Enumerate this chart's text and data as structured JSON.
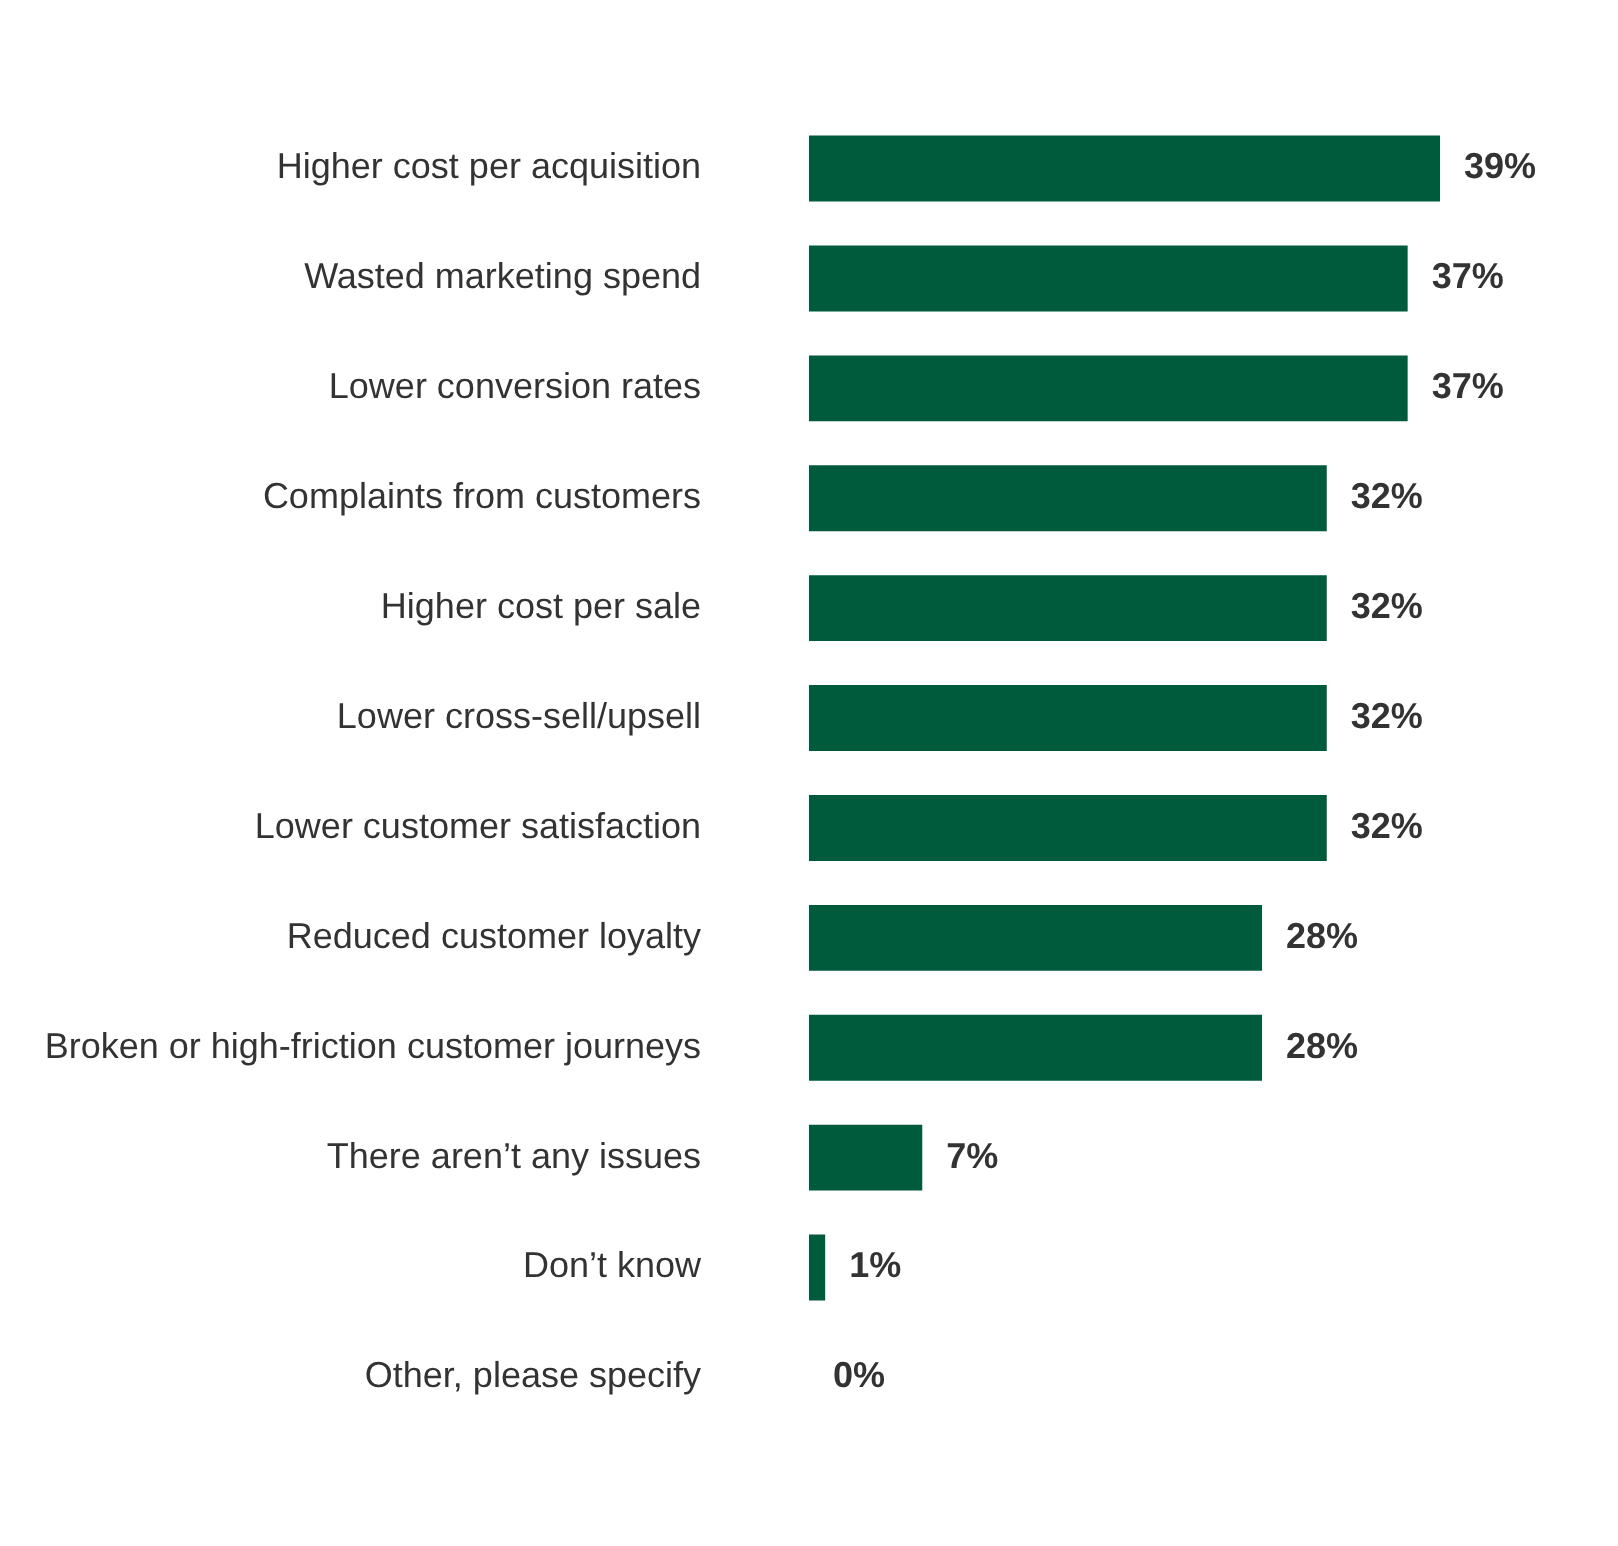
{
  "chart_data": {
    "type": "bar",
    "orientation": "horizontal",
    "categories": [
      "Higher cost per acquisition",
      "Wasted marketing spend",
      "Lower conversion rates",
      "Complaints from customers",
      "Higher cost per sale",
      "Lower cross-sell/upsell",
      "Lower customer satisfaction",
      "Reduced customer loyalty",
      "Broken or high-friction customer journeys",
      "There aren’t any issues",
      "Don’t know",
      "Other, please specify"
    ],
    "values": [
      39,
      37,
      37,
      32,
      32,
      32,
      32,
      28,
      28,
      7,
      1,
      0
    ],
    "value_labels": [
      "39%",
      "37%",
      "37%",
      "32%",
      "32%",
      "32%",
      "32%",
      "28%",
      "28%",
      "7%",
      "1%",
      "0%"
    ],
    "color": "#005a3c",
    "legend": false
  }
}
